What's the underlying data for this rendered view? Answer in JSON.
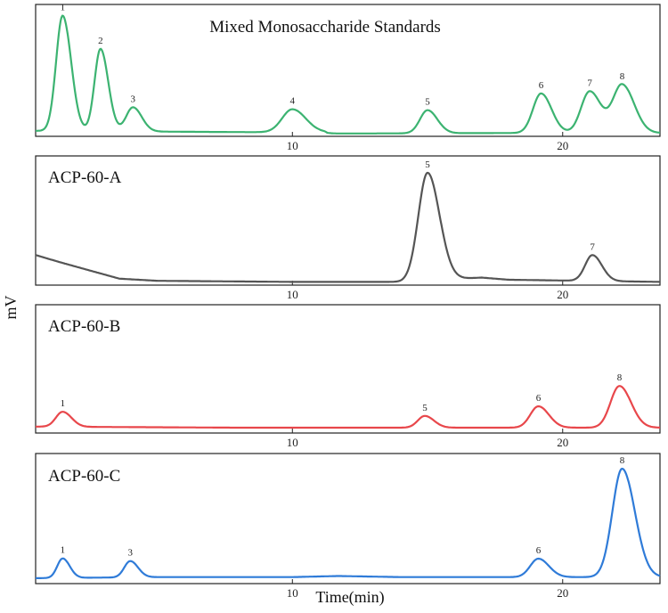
{
  "chart_data": {
    "type": "line",
    "xlabel": "Time(min)",
    "ylabel": "mV",
    "xlim": [
      0.5,
      23.6
    ],
    "xticks": [
      10,
      20
    ],
    "grid": false,
    "panels": [
      {
        "title": "Mixed Monosaccharide Standards",
        "color": "#3cb371",
        "ylim": [
          0,
          1.2
        ],
        "baseline": [
          [
            0.5,
            0.05
          ],
          [
            7,
            0.04
          ],
          [
            11.2,
            0.035
          ],
          [
            11.3,
            0.025
          ],
          [
            18,
            0.03
          ],
          [
            23.6,
            0.03
          ]
        ],
        "peaks": [
          {
            "label": "1",
            "x": 1.5,
            "height": 1.05,
            "width": 0.24
          },
          {
            "label": "2",
            "x": 2.9,
            "height": 0.75,
            "width": 0.22
          },
          {
            "label": "3",
            "x": 4.1,
            "height": 0.22,
            "width": 0.25
          },
          {
            "label": "4",
            "x": 10.0,
            "height": 0.21,
            "width": 0.38
          },
          {
            "label": "5",
            "x": 15.0,
            "height": 0.21,
            "width": 0.28
          },
          {
            "label": "6",
            "x": 19.2,
            "height": 0.36,
            "width": 0.3
          },
          {
            "label": "7",
            "x": 21.0,
            "height": 0.38,
            "width": 0.32
          },
          {
            "label": "8",
            "x": 22.2,
            "height": 0.44,
            "width": 0.34
          }
        ]
      },
      {
        "title": "ACP-60-A",
        "color": "#555555",
        "ylim": [
          0,
          1.2
        ],
        "baseline": [
          [
            0.5,
            0.28
          ],
          [
            1.3,
            0.22
          ],
          [
            2.3,
            0.15
          ],
          [
            3.6,
            0.06
          ],
          [
            5,
            0.04
          ],
          [
            10,
            0.03
          ],
          [
            14,
            0.03
          ],
          [
            17,
            0.07
          ],
          [
            18,
            0.05
          ],
          [
            23.6,
            0.03
          ]
        ],
        "peaks": [
          {
            "label": "5",
            "x": 15.0,
            "height": 1.0,
            "width": 0.34
          },
          {
            "label": "7",
            "x": 21.1,
            "height": 0.24,
            "width": 0.27
          }
        ]
      },
      {
        "title": "ACP-60-B",
        "color": "#e8474b",
        "ylim": [
          0,
          1.2
        ],
        "baseline": [
          [
            0.5,
            0.06
          ],
          [
            8,
            0.05
          ],
          [
            15,
            0.05
          ],
          [
            23.6,
            0.05
          ]
        ],
        "peaks": [
          {
            "label": "1",
            "x": 1.5,
            "height": 0.14,
            "width": 0.25
          },
          {
            "label": "5",
            "x": 14.9,
            "height": 0.11,
            "width": 0.26
          },
          {
            "label": "6",
            "x": 19.1,
            "height": 0.2,
            "width": 0.3
          },
          {
            "label": "8",
            "x": 22.1,
            "height": 0.39,
            "width": 0.33
          }
        ]
      },
      {
        "title": "ACP-60-C",
        "color": "#2f7bd8",
        "ylim": [
          0,
          1.2
        ],
        "baseline": [
          [
            0.5,
            0.05
          ],
          [
            5,
            0.06
          ],
          [
            10,
            0.06
          ],
          [
            11.7,
            0.07
          ],
          [
            14,
            0.06
          ],
          [
            18,
            0.06
          ],
          [
            23.6,
            0.06
          ]
        ],
        "peaks": [
          {
            "label": "1",
            "x": 1.5,
            "height": 0.18,
            "width": 0.2
          },
          {
            "label": "3",
            "x": 4.0,
            "height": 0.15,
            "width": 0.22
          },
          {
            "label": "6",
            "x": 19.1,
            "height": 0.17,
            "width": 0.3
          },
          {
            "label": "8",
            "x": 22.2,
            "height": 1.0,
            "width": 0.36
          }
        ]
      }
    ]
  }
}
